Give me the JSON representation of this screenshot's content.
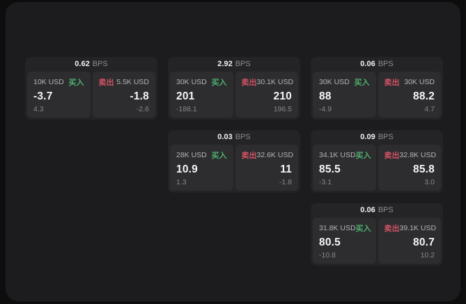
{
  "labels": {
    "bps_unit": "BPS",
    "buy": "买入",
    "sell": "卖出"
  },
  "colors": {
    "buy_green": "#4caf6e",
    "sell_red": "#d05264",
    "window_bg": "#1c1c1e",
    "card_bg": "#242426",
    "panel_bg": "#2d2d2f"
  },
  "cards": [
    {
      "bps": "0.62",
      "buy": {
        "amount": "10K USD",
        "price": "-3.7",
        "sub": "4.3"
      },
      "sell": {
        "amount": "5.5K USD",
        "price": "-1.8",
        "sub": "-2.6"
      }
    },
    {
      "bps": "2.92",
      "buy": {
        "amount": "30K USD",
        "price": "201",
        "sub": "-188.1"
      },
      "sell": {
        "amount": "30.1K USD",
        "price": "210",
        "sub": "196.5"
      }
    },
    {
      "bps": "0.06",
      "buy": {
        "amount": "30K USD",
        "price": "88",
        "sub": "-4.9"
      },
      "sell": {
        "amount": "30K USD",
        "price": "88.2",
        "sub": "4.7"
      }
    },
    {
      "bps": "0.03",
      "buy": {
        "amount": "28K USD",
        "price": "10.9",
        "sub": "1.3"
      },
      "sell": {
        "amount": "32.6K USD",
        "price": "11",
        "sub": "-1.8"
      }
    },
    {
      "bps": "0.09",
      "buy": {
        "amount": "34.1K USD",
        "price": "85.5",
        "sub": "-3.1"
      },
      "sell": {
        "amount": "32.8K USD",
        "price": "85.8",
        "sub": "3.0"
      }
    },
    {
      "bps": "0.06",
      "buy": {
        "amount": "31.8K USD",
        "price": "80.5",
        "sub": "-10.8"
      },
      "sell": {
        "amount": "39.1K USD",
        "price": "80.7",
        "sub": "10.2"
      }
    }
  ]
}
